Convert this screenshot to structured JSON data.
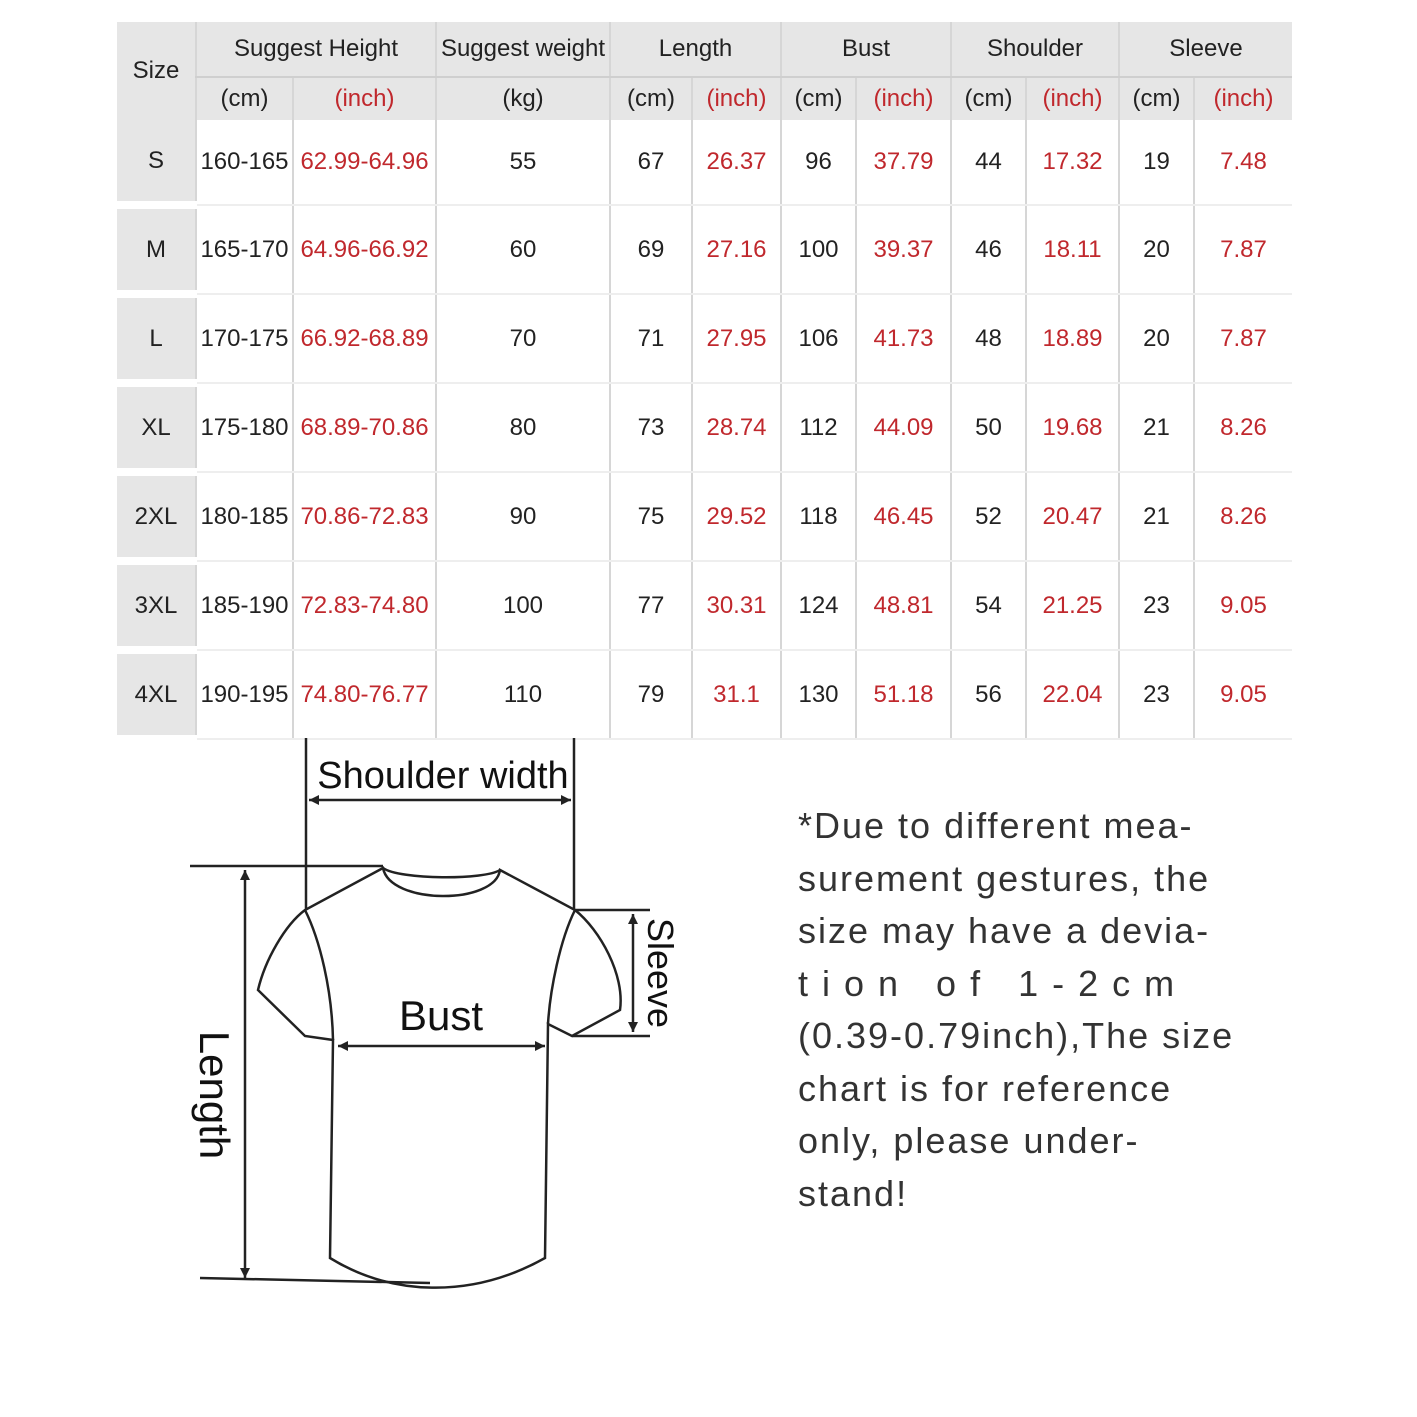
{
  "colors": {
    "header_bg": "#e6e6e6",
    "inch_red": "#c0282d"
  },
  "table": {
    "size_label": "Size",
    "groups": [
      "Suggest Height",
      "Suggest weight",
      "Length",
      "Bust",
      "Shoulder",
      "Sleeve"
    ],
    "units": [
      "(cm)",
      "(inch)",
      "(kg)",
      "(cm)",
      "(inch)",
      "(cm)",
      "(inch)",
      "(cm)",
      "(inch)",
      "(cm)",
      "(inch)"
    ],
    "rows": [
      [
        "S",
        "160-165",
        "62.99-64.96",
        "55",
        "67",
        "26.37",
        "96",
        "37.79",
        "44",
        "17.32",
        "19",
        "7.48"
      ],
      [
        "M",
        "165-170",
        "64.96-66.92",
        "60",
        "69",
        "27.16",
        "100",
        "39.37",
        "46",
        "18.11",
        "20",
        "7.87"
      ],
      [
        "L",
        "170-175",
        "66.92-68.89",
        "70",
        "71",
        "27.95",
        "106",
        "41.73",
        "48",
        "18.89",
        "20",
        "7.87"
      ],
      [
        "XL",
        "175-180",
        "68.89-70.86",
        "80",
        "73",
        "28.74",
        "112",
        "44.09",
        "50",
        "19.68",
        "21",
        "8.26"
      ],
      [
        "2XL",
        "180-185",
        "70.86-72.83",
        "90",
        "75",
        "29.52",
        "118",
        "46.45",
        "52",
        "20.47",
        "21",
        "8.26"
      ],
      [
        "3XL",
        "185-190",
        "72.83-74.80",
        "100",
        "77",
        "30.31",
        "124",
        "48.81",
        "54",
        "21.25",
        "23",
        "9.05"
      ],
      [
        "4XL",
        "190-195",
        "74.80-76.77",
        "110",
        "79",
        "31.1",
        "130",
        "51.18",
        "56",
        "22.04",
        "23",
        "9.05"
      ]
    ]
  },
  "diagram": {
    "shoulder": "Shoulder width",
    "bust": "Bust",
    "length": "Length",
    "sleeve": "Sleeve"
  },
  "note": [
    "*Due to different mea-",
    "surement gestures, the",
    "size may have a devia-",
    "t i o n   o f   1 - 2 c m",
    "(0.39-0.79inch),The size",
    "chart is for reference",
    "only, please under-",
    "stand!"
  ]
}
